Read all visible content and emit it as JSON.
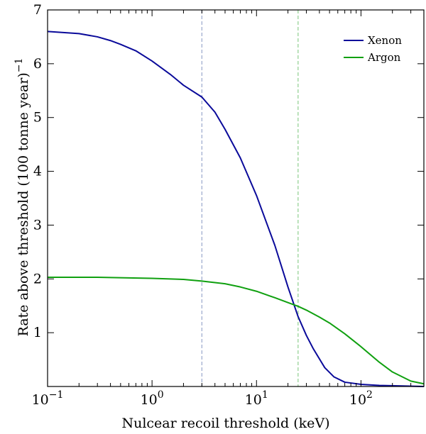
{
  "chart_data": {
    "type": "line",
    "xlabel": "Nulcear recoil threshold (keV)",
    "ylabel": "Rate above threshold (100 tonne year)",
    "ylabel_exponent": "−1",
    "xscale": "log",
    "xlim": [
      0.1,
      400
    ],
    "ylim": [
      0,
      7
    ],
    "x_ticks": [
      {
        "value": 0.1,
        "base": "10",
        "exp": "−1"
      },
      {
        "value": 1,
        "base": "10",
        "exp": "0"
      },
      {
        "value": 10,
        "base": "10",
        "exp": "1"
      },
      {
        "value": 100,
        "base": "10",
        "exp": "2"
      }
    ],
    "y_ticks": [
      1,
      2,
      3,
      4,
      5,
      6,
      7
    ],
    "grid": false,
    "legend_position": "top-right",
    "thresholds": [
      {
        "x": 3,
        "color": "#9aa8cc"
      },
      {
        "x": 25,
        "color": "#8fd08f"
      }
    ],
    "series": [
      {
        "name": "Xenon",
        "color": "#0a0a9a",
        "points": [
          [
            0.1,
            6.6
          ],
          [
            0.2,
            6.56
          ],
          [
            0.3,
            6.5
          ],
          [
            0.4,
            6.43
          ],
          [
            0.5,
            6.36
          ],
          [
            0.7,
            6.24
          ],
          [
            1,
            6.05
          ],
          [
            1.5,
            5.8
          ],
          [
            2,
            5.6
          ],
          [
            3,
            5.38
          ],
          [
            4,
            5.1
          ],
          [
            5,
            4.78
          ],
          [
            7,
            4.25
          ],
          [
            10,
            3.55
          ],
          [
            15,
            2.62
          ],
          [
            20,
            1.85
          ],
          [
            25,
            1.3
          ],
          [
            30,
            0.95
          ],
          [
            35,
            0.7
          ],
          [
            45,
            0.35
          ],
          [
            55,
            0.18
          ],
          [
            70,
            0.08
          ],
          [
            100,
            0.04
          ],
          [
            150,
            0.02
          ],
          [
            250,
            0.01
          ],
          [
            400,
            0.0
          ]
        ]
      },
      {
        "name": "Argon",
        "color": "#10a010",
        "points": [
          [
            0.1,
            2.03
          ],
          [
            0.3,
            2.03
          ],
          [
            1,
            2.01
          ],
          [
            2,
            1.99
          ],
          [
            3,
            1.96
          ],
          [
            5,
            1.91
          ],
          [
            7,
            1.85
          ],
          [
            10,
            1.77
          ],
          [
            15,
            1.65
          ],
          [
            20,
            1.56
          ],
          [
            25,
            1.49
          ],
          [
            30,
            1.42
          ],
          [
            40,
            1.29
          ],
          [
            50,
            1.18
          ],
          [
            70,
            0.98
          ],
          [
            100,
            0.74
          ],
          [
            150,
            0.45
          ],
          [
            200,
            0.27
          ],
          [
            300,
            0.1
          ],
          [
            400,
            0.05
          ]
        ]
      }
    ]
  }
}
